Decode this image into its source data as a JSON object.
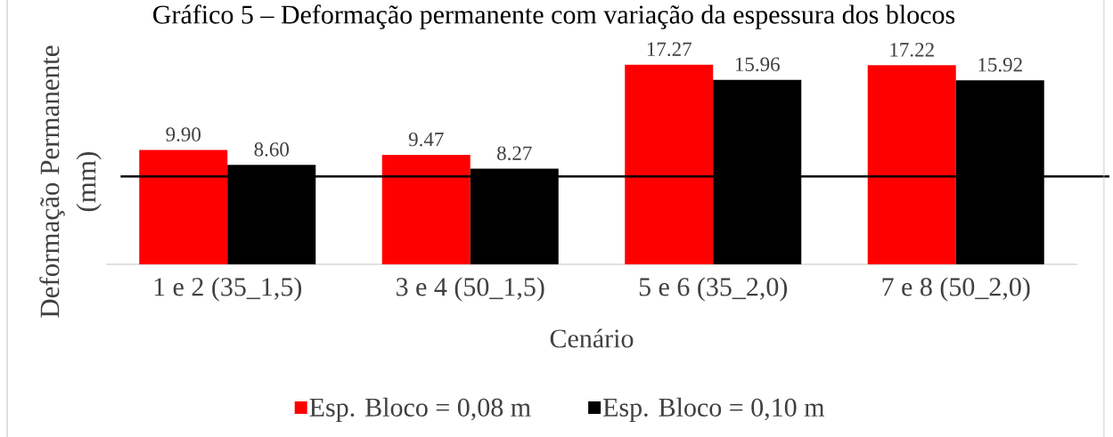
{
  "chart_data": {
    "type": "bar",
    "title": "Gráfico 5 – Deformação permanente com variação da espessura dos blocos",
    "xlabel": "Cenário",
    "ylabel": "Deformação Permanente (mm)",
    "categories": [
      "1 e 2 (35_1,5)",
      "3 e 4 (50_1,5)",
      "5 e 6 (35_2,0)",
      "7 e 8 (50_2,0)"
    ],
    "series": [
      {
        "name": "Esp. Bloco = 0,08 m",
        "color": "#ff0000",
        "values": [
          9.9,
          9.47,
          17.27,
          17.22
        ],
        "value_labels": [
          "9.90",
          "9.47",
          "17.27",
          "17.22"
        ]
      },
      {
        "name": "Esp. Bloco = 0,10 m",
        "color": "#000000",
        "values": [
          8.6,
          8.27,
          15.96,
          15.92
        ],
        "value_labels": [
          "8.60",
          "8.27",
          "15.96",
          "15.92"
        ]
      }
    ],
    "ref_lines": [
      {
        "axis": "y",
        "value": 7.6,
        "color": "#000000"
      }
    ],
    "legend": "bottom"
  }
}
